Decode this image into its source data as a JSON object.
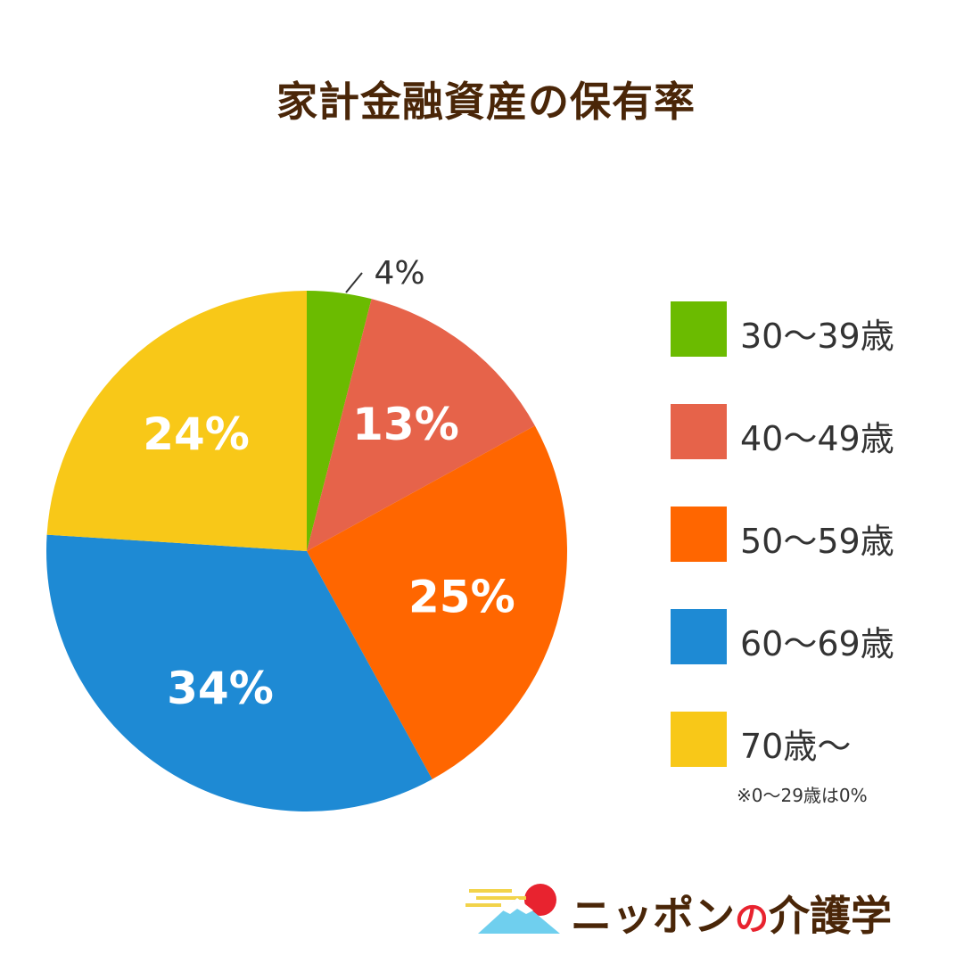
{
  "title": "家計金融資産の保有率",
  "chart_data": {
    "type": "pie",
    "title": "家計金融資産の保有率",
    "legend_position": "right",
    "slices": [
      {
        "label": "30〜39歳",
        "value": 4,
        "display": "4%",
        "color": "#6bbb00"
      },
      {
        "label": "40〜49歳",
        "value": 13,
        "display": "13%",
        "color": "#e6634a"
      },
      {
        "label": "50〜59歳",
        "value": 25,
        "display": "25%",
        "color": "#ff6600"
      },
      {
        "label": "60〜69歳",
        "value": 34,
        "display": "34%",
        "color": "#1e8ad4"
      },
      {
        "label": "70歳〜",
        "value": 24,
        "display": "24%",
        "color": "#f8c818"
      }
    ],
    "note": "※0〜29歳は0%"
  },
  "brand": {
    "name_part1": "ニッポン",
    "name_part2": "の",
    "name_part3": "介護学",
    "logo_icon": "mount-fuji-sun-icon"
  }
}
